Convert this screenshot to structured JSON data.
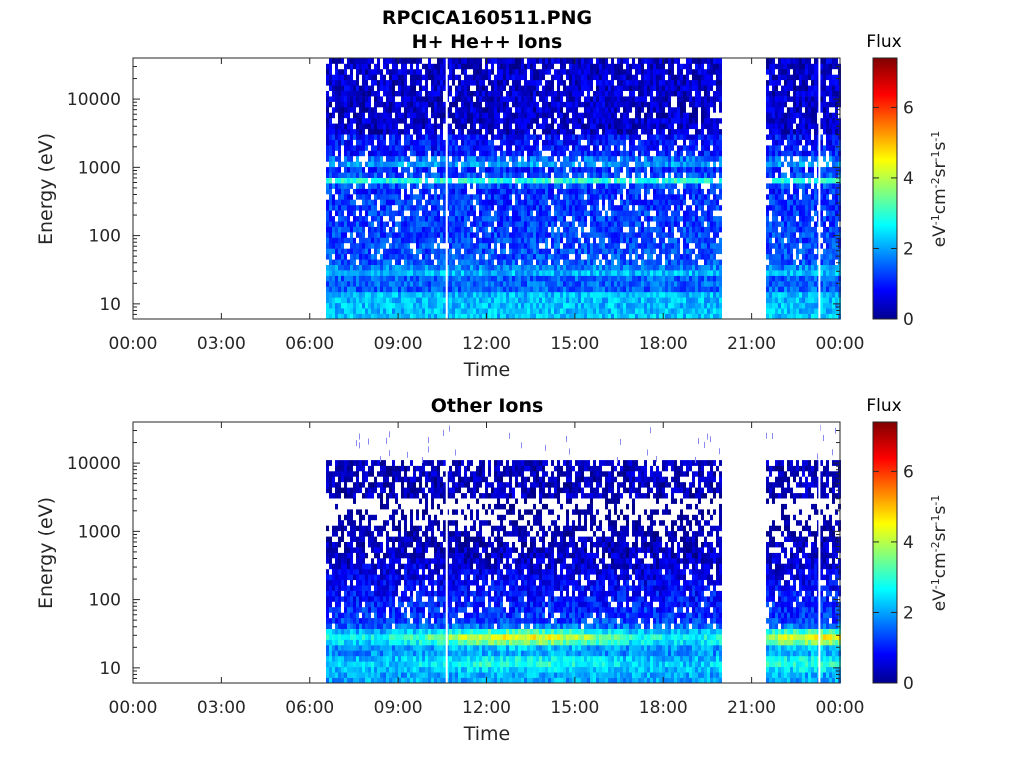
{
  "chart_data": [
    {
      "type": "heatmap",
      "title": "RPCICA160511.PNG",
      "subtitle": "H+ He++ Ions",
      "xlabel": "Time",
      "ylabel": "Energy (eV)",
      "x_ticks": [
        "00:00",
        "03:00",
        "06:00",
        "09:00",
        "12:00",
        "15:00",
        "18:00",
        "21:00",
        "00:00"
      ],
      "x_range_hours": [
        0,
        24
      ],
      "y_scale": "log",
      "y_ticks": [
        "10",
        "100",
        "1000",
        "10000"
      ],
      "y_range_ev": [
        6,
        40000
      ],
      "data_intervals_hours": [
        [
          6.55,
          19.95
        ],
        [
          21.5,
          24.0
        ]
      ],
      "colorbar": {
        "label": "Flux",
        "unit": "eV-1cm-2sr-1s-1",
        "range": [
          0,
          7.4
        ],
        "ticks": [
          "0",
          "2",
          "4",
          "6"
        ],
        "colormap": "jet"
      },
      "features": [
        {
          "energy_ev": 650,
          "level": 3.2
        },
        {
          "energy_ev": 1200,
          "level": 2.6
        },
        {
          "energy_ev": 30,
          "level": 2.2
        }
      ]
    },
    {
      "type": "heatmap",
      "title": "Other Ions",
      "xlabel": "Time",
      "ylabel": "Energy (eV)",
      "x_ticks": [
        "00:00",
        "03:00",
        "06:00",
        "09:00",
        "12:00",
        "15:00",
        "18:00",
        "21:00",
        "00:00"
      ],
      "x_range_hours": [
        0,
        24
      ],
      "y_scale": "log",
      "y_ticks": [
        "10",
        "100",
        "1000",
        "10000"
      ],
      "y_range_ev": [
        6,
        40000
      ],
      "data_intervals_hours": [
        [
          6.55,
          19.95
        ],
        [
          21.5,
          24.0
        ]
      ],
      "colorbar": {
        "label": "Flux",
        "unit": "eV-1cm-2sr-1s-1",
        "range": [
          0,
          7.4
        ],
        "ticks": [
          "0",
          "2",
          "4",
          "6"
        ],
        "colormap": "jet"
      },
      "features": [
        {
          "energy_ev": 28,
          "level": 5.0
        },
        {
          "energy_ev": 12,
          "level": 3.2
        }
      ]
    }
  ]
}
